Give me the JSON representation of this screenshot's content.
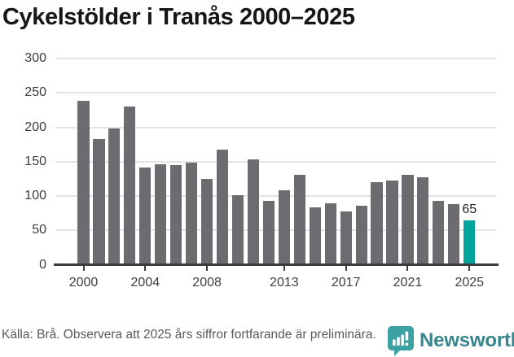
{
  "title": "Cykelstölder i Tranås 2000–2025",
  "chart_data": {
    "type": "bar",
    "title": "Cykelstölder i Tranås 2000–2025",
    "categories": [
      "2000",
      "2001",
      "2002",
      "2003",
      "2004",
      "2005",
      "2006",
      "2007",
      "2008",
      "2009",
      "2010",
      "2011",
      "2012",
      "2013",
      "2014",
      "2015",
      "2016",
      "2017",
      "2018",
      "2019",
      "2020",
      "2021",
      "2022",
      "2023",
      "2024",
      "2025"
    ],
    "values": [
      239,
      183,
      198,
      230,
      142,
      146,
      145,
      148,
      125,
      167,
      101,
      153,
      93,
      108,
      131,
      84,
      89,
      78,
      86,
      120,
      123,
      131,
      127,
      93,
      88,
      65
    ],
    "xlabel": "",
    "ylabel": "",
    "ylim": [
      0,
      300
    ],
    "yticks": [
      0,
      50,
      100,
      150,
      200,
      250,
      300
    ],
    "xtick_labels": [
      "2000",
      "2004",
      "2008",
      "2013",
      "2017",
      "2021",
      "2025"
    ],
    "grid": true,
    "legend": "none",
    "bar_color": "#6c6b70",
    "highlight_color": "#00a49c",
    "highlight_index": 25,
    "highlight_value_label": "65",
    "gridline_color": "#e3e3e3",
    "axis_line_color": "#3c3c3c"
  },
  "footer": {
    "source_text": "Källa: Brå. Observera att 2025 års siffror fortfarande är preliminära.",
    "brand_name": "Newsworthy",
    "brand_text_color": "#37858d",
    "brand_icon_color": "#3ba1a2"
  }
}
